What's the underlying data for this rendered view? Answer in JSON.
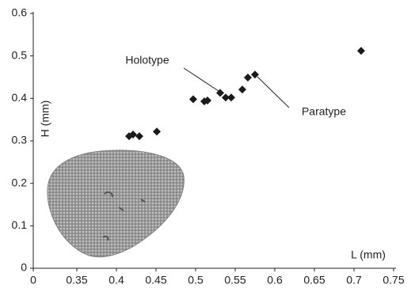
{
  "chart_data": {
    "type": "scatter",
    "x_label": "L (mm)",
    "y_label": "H (mm)",
    "x": [
      0.416,
      0.421,
      0.429,
      0.451,
      0.497,
      0.511,
      0.515,
      0.531,
      0.538,
      0.545,
      0.559,
      0.566,
      0.575,
      0.709
    ],
    "values": [
      0.311,
      0.315,
      0.311,
      0.322,
      0.398,
      0.393,
      0.395,
      0.413,
      0.402,
      0.402,
      0.421,
      0.449,
      0.456,
      0.512
    ],
    "color": "#1a1a1a",
    "xlim": [
      0,
      0.75
    ],
    "xticks": [
      0,
      0.35,
      0.4,
      0.45,
      0.5,
      0.55,
      0.6,
      0.65,
      0.7,
      0.75
    ],
    "ylim": [
      0,
      0.6
    ],
    "yticks": [
      0,
      0.1,
      0.2,
      0.3,
      0.4,
      0.5,
      0.6
    ],
    "annotations": [
      "Holotype",
      "Paratype"
    ]
  }
}
